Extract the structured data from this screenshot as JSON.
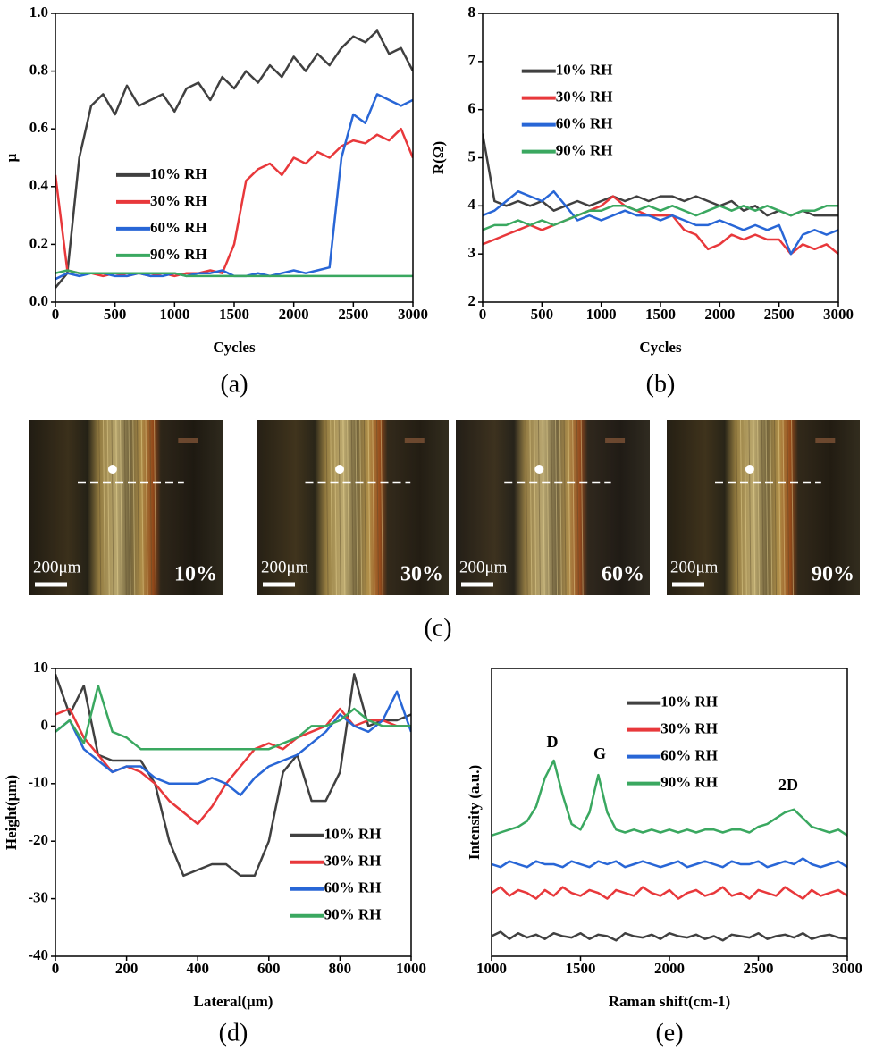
{
  "chart_data": [
    {
      "type": "line",
      "panel": "(a)",
      "xlabel": "Cycles",
      "ylabel": "μ",
      "legend": "center-left",
      "xlim": [
        0,
        3000
      ],
      "xticks": [
        0,
        500,
        1000,
        1500,
        2000,
        2500,
        3000
      ],
      "ylim": [
        0,
        1
      ],
      "yticks": [
        {
          "value": 0,
          "label": "0.0"
        },
        0.2,
        0.4,
        0.6,
        0.8,
        {
          "value": 1,
          "label": "1.0"
        }
      ],
      "x": [
        0,
        100,
        200,
        300,
        400,
        500,
        600,
        700,
        800,
        900,
        1000,
        1100,
        1200,
        1300,
        1400,
        1500,
        1600,
        1700,
        1800,
        1900,
        2000,
        2100,
        2200,
        2300,
        2400,
        2500,
        2600,
        2700,
        2800,
        2900,
        3000
      ],
      "series": [
        {
          "name": "10% RH",
          "color": "#404040",
          "values": [
            0.05,
            0.1,
            0.5,
            0.68,
            0.72,
            0.65,
            0.75,
            0.68,
            0.7,
            0.72,
            0.66,
            0.74,
            0.76,
            0.7,
            0.78,
            0.74,
            0.8,
            0.76,
            0.82,
            0.78,
            0.85,
            0.8,
            0.86,
            0.82,
            0.88,
            0.92,
            0.9,
            0.94,
            0.86,
            0.88,
            0.8
          ]
        },
        {
          "name": "30% RH",
          "color": "#e8383b",
          "values": [
            0.44,
            0.11,
            0.1,
            0.1,
            0.09,
            0.1,
            0.09,
            0.1,
            0.09,
            0.1,
            0.09,
            0.1,
            0.1,
            0.11,
            0.1,
            0.2,
            0.42,
            0.46,
            0.48,
            0.44,
            0.5,
            0.48,
            0.52,
            0.5,
            0.54,
            0.56,
            0.55,
            0.58,
            0.56,
            0.6,
            0.5
          ]
        },
        {
          "name": "60% RH",
          "color": "#2866d6",
          "values": [
            0.08,
            0.1,
            0.09,
            0.1,
            0.1,
            0.09,
            0.09,
            0.1,
            0.09,
            0.09,
            0.1,
            0.09,
            0.1,
            0.1,
            0.11,
            0.09,
            0.09,
            0.1,
            0.09,
            0.1,
            0.11,
            0.1,
            0.11,
            0.12,
            0.5,
            0.65,
            0.62,
            0.72,
            0.7,
            0.68,
            0.7
          ]
        },
        {
          "name": "90% RH",
          "color": "#3aa860",
          "values": [
            0.1,
            0.11,
            0.1,
            0.1,
            0.1,
            0.1,
            0.1,
            0.1,
            0.1,
            0.1,
            0.1,
            0.09,
            0.09,
            0.09,
            0.09,
            0.09,
            0.09,
            0.09,
            0.09,
            0.09,
            0.09,
            0.09,
            0.09,
            0.09,
            0.09,
            0.09,
            0.09,
            0.09,
            0.09,
            0.09,
            0.09
          ]
        }
      ]
    },
    {
      "type": "line",
      "panel": "(b)",
      "xlabel": "Cycles",
      "ylabel": "R(Ω)",
      "legend": "upper-left",
      "xlim": [
        0,
        3000
      ],
      "xticks": [
        0,
        500,
        1000,
        1500,
        2000,
        2500,
        3000
      ],
      "ylim": [
        2,
        8
      ],
      "yticks": [
        2,
        3,
        4,
        5,
        6,
        7,
        8
      ],
      "x": [
        0,
        100,
        200,
        300,
        400,
        500,
        600,
        700,
        800,
        900,
        1000,
        1100,
        1200,
        1300,
        1400,
        1500,
        1600,
        1700,
        1800,
        1900,
        2000,
        2100,
        2200,
        2300,
        2400,
        2500,
        2600,
        2700,
        2800,
        2900,
        3000
      ],
      "series": [
        {
          "name": "10% RH",
          "color": "#404040",
          "values": [
            5.5,
            4.1,
            4.0,
            4.1,
            4.0,
            4.1,
            3.9,
            4.0,
            4.1,
            4.0,
            4.1,
            4.2,
            4.1,
            4.2,
            4.1,
            4.2,
            4.2,
            4.1,
            4.2,
            4.1,
            4.0,
            4.1,
            3.9,
            4.0,
            3.8,
            3.9,
            3.8,
            3.9,
            3.8,
            3.8,
            3.8
          ]
        },
        {
          "name": "30% RH",
          "color": "#e8383b",
          "values": [
            3.2,
            3.3,
            3.4,
            3.5,
            3.6,
            3.5,
            3.6,
            3.7,
            3.8,
            3.9,
            4.0,
            4.2,
            4.0,
            3.9,
            3.8,
            3.8,
            3.8,
            3.5,
            3.4,
            3.1,
            3.2,
            3.4,
            3.3,
            3.4,
            3.3,
            3.3,
            3.0,
            3.2,
            3.1,
            3.2,
            3.0
          ]
        },
        {
          "name": "60% RH",
          "color": "#2866d6",
          "values": [
            3.8,
            3.9,
            4.1,
            4.3,
            4.2,
            4.1,
            4.3,
            4.0,
            3.7,
            3.8,
            3.7,
            3.8,
            3.9,
            3.8,
            3.8,
            3.7,
            3.8,
            3.7,
            3.6,
            3.6,
            3.7,
            3.6,
            3.5,
            3.6,
            3.5,
            3.6,
            3.0,
            3.4,
            3.5,
            3.4,
            3.5
          ]
        },
        {
          "name": "90% RH",
          "color": "#3aa860",
          "values": [
            3.5,
            3.6,
            3.6,
            3.7,
            3.6,
            3.7,
            3.6,
            3.7,
            3.8,
            3.9,
            3.9,
            4.0,
            4.0,
            3.9,
            4.0,
            3.9,
            4.0,
            3.9,
            3.8,
            3.9,
            4.0,
            3.9,
            4.0,
            3.9,
            4.0,
            3.9,
            3.8,
            3.9,
            3.9,
            4.0,
            4.0
          ]
        }
      ]
    },
    {
      "type": "line",
      "panel": "(d)",
      "xlabel": "Lateral(μm)",
      "ylabel": "Height(μm)",
      "legend": "lower-right",
      "xlim": [
        0,
        1000
      ],
      "xticks": [
        0,
        200,
        400,
        600,
        800,
        1000
      ],
      "ylim": [
        -40,
        10
      ],
      "yticks": [
        -40,
        -30,
        -20,
        -10,
        0,
        10
      ],
      "x": [
        0,
        40,
        80,
        120,
        160,
        200,
        240,
        280,
        320,
        360,
        400,
        440,
        480,
        520,
        560,
        600,
        640,
        680,
        720,
        760,
        800,
        840,
        880,
        920,
        960,
        1000
      ],
      "series": [
        {
          "name": "10% RH",
          "color": "#404040",
          "values": [
            9,
            2,
            7,
            -5,
            -6,
            -6,
            -6,
            -10,
            -20,
            -26,
            -25,
            -24,
            -24,
            -26,
            -26,
            -20,
            -8,
            -5,
            -13,
            -13,
            -8,
            9,
            0,
            1,
            1,
            2
          ]
        },
        {
          "name": "30% RH",
          "color": "#e8383b",
          "values": [
            2,
            3,
            -2,
            -5,
            -8,
            -7,
            -8,
            -10,
            -13,
            -15,
            -17,
            -14,
            -10,
            -7,
            -4,
            -3,
            -4,
            -2,
            -1,
            0,
            3,
            0,
            1,
            1,
            0,
            0
          ]
        },
        {
          "name": "60% RH",
          "color": "#2866d6",
          "values": [
            -1,
            1,
            -4,
            -6,
            -8,
            -7,
            -7,
            -9,
            -10,
            -10,
            -10,
            -9,
            -10,
            -12,
            -9,
            -7,
            -6,
            -5,
            -3,
            -1,
            2,
            0,
            -1,
            1,
            6,
            -1
          ]
        },
        {
          "name": "90% RH",
          "color": "#3aa860",
          "values": [
            -1,
            1,
            -3,
            7,
            -1,
            -2,
            -4,
            -4,
            -4,
            -4,
            -4,
            -4,
            -4,
            -4,
            -4,
            -4,
            -3,
            -2,
            0,
            0,
            1,
            3,
            1,
            0,
            0,
            0
          ]
        }
      ]
    },
    {
      "type": "line",
      "panel": "(e)",
      "xlabel": "Raman shift(cm-1)",
      "ylabel": "Intensity (a.u.)",
      "legend": "upper-center",
      "annotations": [
        "D",
        "G",
        "2D"
      ],
      "xlim": [
        1000,
        3000
      ],
      "xticks": [
        1000,
        1500,
        2000,
        2500,
        3000
      ],
      "ylim": [
        0,
        10
      ],
      "x": [
        1000,
        1050,
        1100,
        1150,
        1200,
        1250,
        1300,
        1350,
        1400,
        1450,
        1500,
        1550,
        1600,
        1650,
        1700,
        1750,
        1800,
        1850,
        1900,
        1950,
        2000,
        2050,
        2100,
        2150,
        2200,
        2250,
        2300,
        2350,
        2400,
        2450,
        2500,
        2550,
        2600,
        2650,
        2700,
        2750,
        2800,
        2850,
        2900,
        2950,
        3000
      ],
      "series": [
        {
          "name": "10% RH",
          "color": "#404040",
          "values": [
            0.7,
            0.85,
            0.6,
            0.8,
            0.65,
            0.75,
            0.6,
            0.8,
            0.7,
            0.65,
            0.8,
            0.6,
            0.75,
            0.7,
            0.55,
            0.8,
            0.7,
            0.65,
            0.75,
            0.6,
            0.8,
            0.7,
            0.65,
            0.75,
            0.6,
            0.7,
            0.55,
            0.75,
            0.7,
            0.65,
            0.8,
            0.6,
            0.7,
            0.75,
            0.65,
            0.8,
            0.6,
            0.7,
            0.75,
            0.65,
            0.6
          ]
        },
        {
          "name": "30% RH",
          "color": "#e8383b",
          "values": [
            2.2,
            2.4,
            2.1,
            2.3,
            2.2,
            2.0,
            2.3,
            2.1,
            2.4,
            2.2,
            2.1,
            2.3,
            2.2,
            2.0,
            2.3,
            2.2,
            2.1,
            2.4,
            2.2,
            2.1,
            2.3,
            2.0,
            2.2,
            2.3,
            2.1,
            2.2,
            2.4,
            2.1,
            2.2,
            2.0,
            2.3,
            2.2,
            2.1,
            2.4,
            2.2,
            2.0,
            2.3,
            2.1,
            2.2,
            2.3,
            2.1
          ]
        },
        {
          "name": "60% RH",
          "color": "#2866d6",
          "values": [
            3.2,
            3.1,
            3.3,
            3.2,
            3.1,
            3.3,
            3.2,
            3.2,
            3.1,
            3.3,
            3.2,
            3.1,
            3.3,
            3.2,
            3.3,
            3.1,
            3.2,
            3.3,
            3.2,
            3.1,
            3.2,
            3.3,
            3.1,
            3.2,
            3.3,
            3.2,
            3.1,
            3.3,
            3.2,
            3.2,
            3.3,
            3.1,
            3.2,
            3.3,
            3.2,
            3.4,
            3.2,
            3.1,
            3.2,
            3.3,
            3.1
          ]
        },
        {
          "name": "90% RH",
          "color": "#3aa860",
          "values": [
            4.2,
            4.3,
            4.4,
            4.5,
            4.7,
            5.2,
            6.2,
            6.8,
            5.6,
            4.6,
            4.4,
            5.0,
            6.3,
            5.0,
            4.4,
            4.3,
            4.4,
            4.3,
            4.4,
            4.3,
            4.4,
            4.3,
            4.4,
            4.3,
            4.4,
            4.4,
            4.3,
            4.4,
            4.4,
            4.3,
            4.5,
            4.6,
            4.8,
            5.0,
            5.1,
            4.8,
            4.5,
            4.4,
            4.3,
            4.4,
            4.2
          ]
        }
      ]
    }
  ],
  "micrographs": {
    "panel": "(c)",
    "images": [
      {
        "scale": "200μm",
        "label": "10%"
      },
      {
        "scale": "200μm",
        "label": "30%"
      },
      {
        "scale": "200μm",
        "label": "60%"
      },
      {
        "scale": "200μm",
        "label": "90%"
      }
    ]
  }
}
